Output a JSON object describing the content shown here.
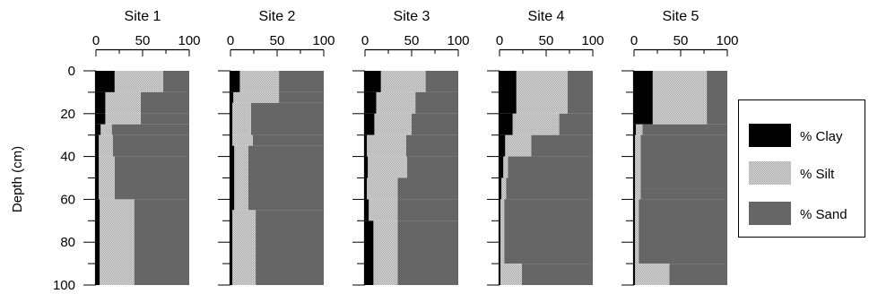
{
  "chart_data": {
    "type": "area",
    "ylabel": "Depth (cm)",
    "x_ticks": [
      0,
      50,
      100
    ],
    "y_ticks": [
      0,
      20,
      40,
      60,
      80,
      100
    ],
    "ylim": [
      0,
      100
    ],
    "xlim": [
      0,
      100
    ],
    "legend": {
      "placement": "right",
      "entries": [
        "% Clay",
        "% Silt",
        "% Sand"
      ]
    },
    "colors": {
      "clay": "#000000",
      "silt": "#c8c8c8",
      "sand": "#666666"
    },
    "sites": [
      {
        "title": "Site 1",
        "layers": [
          {
            "top": 0,
            "bottom": 10,
            "clay": 20,
            "silt": 52
          },
          {
            "top": 10,
            "bottom": 20,
            "clay": 10,
            "silt": 38
          },
          {
            "top": 20,
            "bottom": 25,
            "clay": 10,
            "silt": 38
          },
          {
            "top": 25,
            "bottom": 30,
            "clay": 5,
            "silt": 12
          },
          {
            "top": 30,
            "bottom": 40,
            "clay": 3,
            "silt": 15
          },
          {
            "top": 40,
            "bottom": 60,
            "clay": 3,
            "silt": 17
          },
          {
            "top": 60,
            "bottom": 100,
            "clay": 4,
            "silt": 37
          }
        ]
      },
      {
        "title": "Site 2",
        "layers": [
          {
            "top": 0,
            "bottom": 10,
            "clay": 10,
            "silt": 42
          },
          {
            "top": 10,
            "bottom": 15,
            "clay": 3,
            "silt": 49
          },
          {
            "top": 15,
            "bottom": 30,
            "clay": 2,
            "silt": 20
          },
          {
            "top": 30,
            "bottom": 35,
            "clay": 2,
            "silt": 22
          },
          {
            "top": 35,
            "bottom": 65,
            "clay": 4,
            "silt": 15
          },
          {
            "top": 65,
            "bottom": 100,
            "clay": 2,
            "silt": 25
          }
        ]
      },
      {
        "title": "Site 3",
        "layers": [
          {
            "top": 0,
            "bottom": 10,
            "clay": 17,
            "silt": 48
          },
          {
            "top": 10,
            "bottom": 20,
            "clay": 12,
            "silt": 42
          },
          {
            "top": 20,
            "bottom": 30,
            "clay": 10,
            "silt": 40
          },
          {
            "top": 30,
            "bottom": 40,
            "clay": 2,
            "silt": 42
          },
          {
            "top": 40,
            "bottom": 50,
            "clay": 3,
            "silt": 42
          },
          {
            "top": 50,
            "bottom": 60,
            "clay": 2,
            "silt": 33
          },
          {
            "top": 60,
            "bottom": 70,
            "clay": 4,
            "silt": 31
          },
          {
            "top": 70,
            "bottom": 100,
            "clay": 9,
            "silt": 26
          }
        ]
      },
      {
        "title": "Site 4",
        "layers": [
          {
            "top": 0,
            "bottom": 20,
            "clay": 18,
            "silt": 55
          },
          {
            "top": 20,
            "bottom": 30,
            "clay": 14,
            "silt": 50
          },
          {
            "top": 30,
            "bottom": 40,
            "clay": 6,
            "silt": 28
          },
          {
            "top": 40,
            "bottom": 50,
            "clay": 4,
            "silt": 5
          },
          {
            "top": 50,
            "bottom": 60,
            "clay": 2,
            "silt": 5
          },
          {
            "top": 60,
            "bottom": 90,
            "clay": 1,
            "silt": 4
          },
          {
            "top": 90,
            "bottom": 100,
            "clay": 1,
            "silt": 23
          }
        ]
      },
      {
        "title": "Site 5",
        "layers": [
          {
            "top": 0,
            "bottom": 25,
            "clay": 20,
            "silt": 58
          },
          {
            "top": 25,
            "bottom": 30,
            "clay": 2,
            "silt": 7
          },
          {
            "top": 30,
            "bottom": 55,
            "clay": 1,
            "silt": 6
          },
          {
            "top": 55,
            "bottom": 60,
            "clay": 1,
            "silt": 6
          },
          {
            "top": 60,
            "bottom": 90,
            "clay": 1,
            "silt": 4
          },
          {
            "top": 90,
            "bottom": 100,
            "clay": 1,
            "silt": 37
          }
        ]
      }
    ]
  }
}
